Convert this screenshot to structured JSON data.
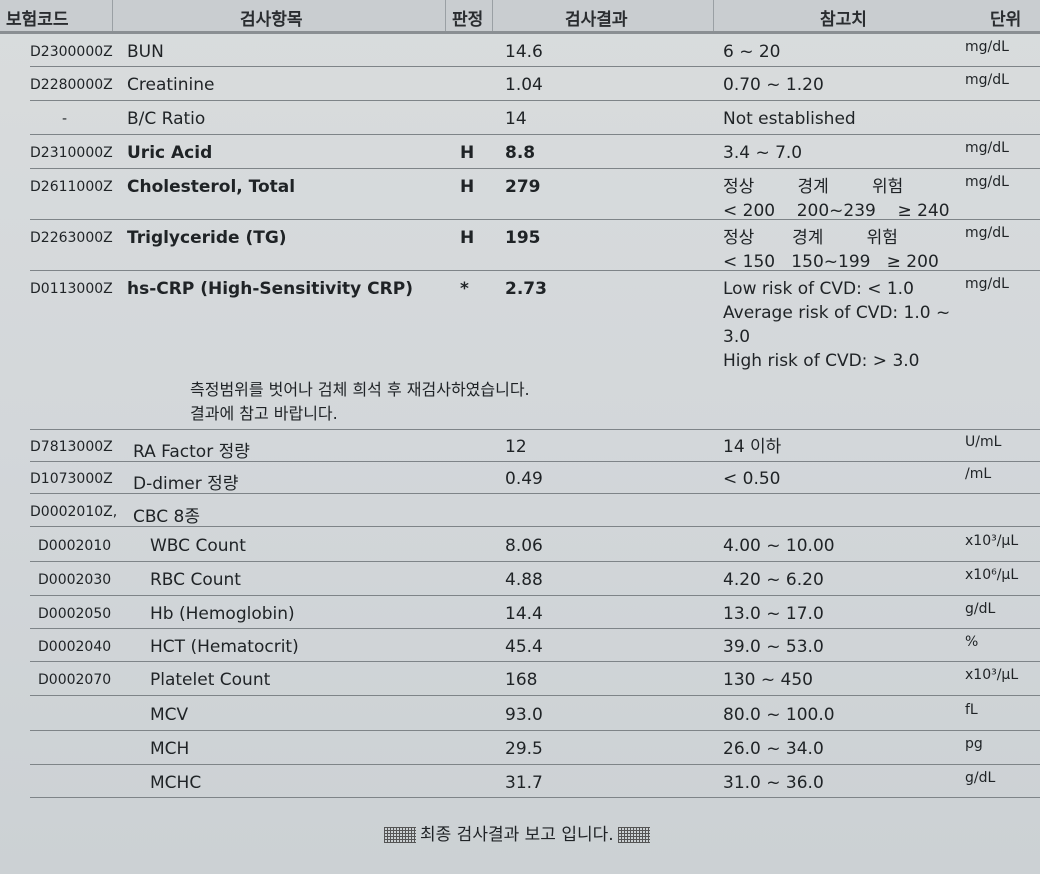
{
  "header": {
    "code": "보험코드",
    "item": "검사항목",
    "flag": "판정",
    "result": "검사결과",
    "reference": "참고치",
    "unit": "단위"
  },
  "rows": [
    {
      "code": "D2300000Z",
      "name": "BUN",
      "flag": "",
      "result": "14.6",
      "ref": [
        "6 ~ 20"
      ],
      "unit": "mg/dL",
      "bold": false
    },
    {
      "code": "D2280000Z",
      "name": "Creatinine",
      "flag": "",
      "result": "1.04",
      "ref": [
        "0.70 ~ 1.20"
      ],
      "unit": "mg/dL",
      "bold": false
    },
    {
      "code": "-",
      "name": "B/C Ratio",
      "flag": "",
      "result": "14",
      "ref": [
        "Not established"
      ],
      "unit": "",
      "bold": false
    },
    {
      "code": "D2310000Z",
      "name": "Uric Acid",
      "flag": "H",
      "result": "8.8",
      "ref": [
        "3.4 ~ 7.0"
      ],
      "unit": "mg/dL",
      "bold": true
    },
    {
      "code": "D2611000Z",
      "name": "Cholesterol, Total",
      "flag": "H",
      "result": "279",
      "ref": [
        "정상        경계        위험",
        "< 200    200~239    ≥ 240"
      ],
      "unit": "mg/dL",
      "bold": true
    },
    {
      "code": "D2263000Z",
      "name": "Triglyceride (TG)",
      "flag": "H",
      "result": "195",
      "ref": [
        "정상       경계        위험",
        "< 150   150~199   ≥ 200"
      ],
      "unit": "mg/dL",
      "bold": true
    },
    {
      "code": "D0113000Z",
      "name": "hs-CRP (High-Sensitivity CRP)",
      "flag": "*",
      "result": "2.73",
      "ref": [
        "Low risk of CVD: < 1.0",
        "Average risk of CVD: 1.0 ~",
        "3.0",
        "High risk of CVD: > 3.0"
      ],
      "unit": "mg/dL",
      "bold": true
    },
    {
      "code": "D7813000Z",
      "name": "RA Factor 정량",
      "flag": "",
      "result": "12",
      "ref": [
        "14 이하"
      ],
      "unit": "U/mL",
      "bold": false
    },
    {
      "code": "D1073000Z",
      "name": "D-dimer 정량",
      "flag": "",
      "result": "0.49",
      "ref": [
        "< 0.50"
      ],
      "unit": "/mL",
      "bold": false
    },
    {
      "code": "D0002010Z,",
      "name": "CBC 8종",
      "flag": "",
      "result": "",
      "ref": [
        ""
      ],
      "unit": "",
      "bold": false
    },
    {
      "code": "D0002010",
      "name": "WBC Count",
      "flag": "",
      "result": "8.06",
      "ref": [
        "4.00 ~ 10.00"
      ],
      "unit": "x10³/μL",
      "bold": false
    },
    {
      "code": "D0002030",
      "name": "RBC Count",
      "flag": "",
      "result": "4.88",
      "ref": [
        "4.20 ~ 6.20"
      ],
      "unit": "x10⁶/μL",
      "bold": false
    },
    {
      "code": "D0002050",
      "name": "Hb (Hemoglobin)",
      "flag": "",
      "result": "14.4",
      "ref": [
        "13.0 ~ 17.0"
      ],
      "unit": "g/dL",
      "bold": false
    },
    {
      "code": "D0002040",
      "name": "HCT (Hematocrit)",
      "flag": "",
      "result": "45.4",
      "ref": [
        "39.0 ~ 53.0"
      ],
      "unit": "%",
      "bold": false
    },
    {
      "code": "D0002070",
      "name": "Platelet Count",
      "flag": "",
      "result": "168",
      "ref": [
        "130 ~ 450"
      ],
      "unit": "x10³/μL",
      "bold": false
    },
    {
      "code": "",
      "name": "MCV",
      "flag": "",
      "result": "93.0",
      "ref": [
        "80.0 ~ 100.0"
      ],
      "unit": "fL",
      "bold": false
    },
    {
      "code": "",
      "name": "MCH",
      "flag": "",
      "result": "29.5",
      "ref": [
        "26.0 ~ 34.0"
      ],
      "unit": "pg",
      "bold": false
    },
    {
      "code": "",
      "name": "MCHC",
      "flag": "",
      "result": "31.7",
      "ref": [
        "31.0 ~ 36.0"
      ],
      "unit": "g/dL",
      "bold": false
    }
  ],
  "note": [
    "측정범위를 벗어나 검체 희석 후 재검사하였습니다.",
    "결과에 참고 바랍니다."
  ],
  "footer": "최종 검사결과 보고 입니다."
}
